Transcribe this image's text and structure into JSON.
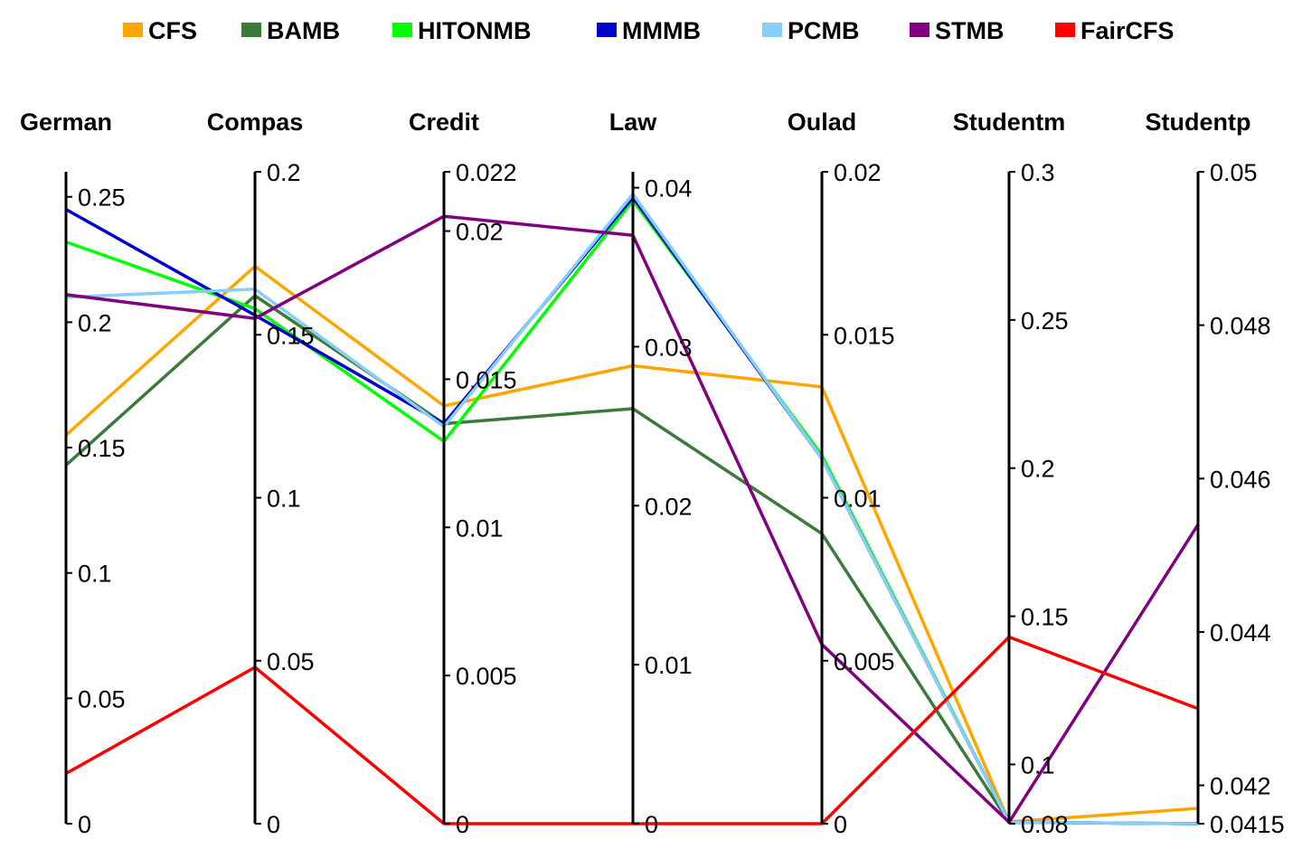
{
  "chart_data": {
    "type": "parallel-coordinates",
    "title": "",
    "legend_position": "top",
    "axes": [
      {
        "name": "German",
        "range": [
          0,
          0.26
        ],
        "ticks": [
          0,
          0.05,
          0.1,
          0.15,
          0.2,
          0.25
        ],
        "tick_labels": [
          "0",
          "0.05",
          "0.1",
          "0.15",
          "0.2",
          "0.25"
        ]
      },
      {
        "name": "Compas",
        "range": [
          0,
          0.2
        ],
        "ticks": [
          0,
          0.05,
          0.1,
          0.15,
          0.2
        ],
        "tick_labels": [
          "0",
          "0.05",
          "0.1",
          "0.15",
          "0.2"
        ]
      },
      {
        "name": "Credit",
        "range": [
          0,
          0.022
        ],
        "ticks": [
          0,
          0.005,
          0.01,
          0.015,
          0.02,
          0.022
        ],
        "tick_labels": [
          "0",
          "0.005",
          "0.01",
          "0.015",
          "0.02",
          "0.022"
        ]
      },
      {
        "name": "Law",
        "range": [
          0,
          0.041
        ],
        "ticks": [
          0,
          0.01,
          0.02,
          0.03,
          0.04
        ],
        "tick_labels": [
          "0",
          "0.01",
          "0.02",
          "0.03",
          "0.04"
        ]
      },
      {
        "name": "Oulad",
        "range": [
          0,
          0.02
        ],
        "ticks": [
          0,
          0.005,
          0.01,
          0.015,
          0.02
        ],
        "tick_labels": [
          "0",
          "0.005",
          "0.01",
          "0.015",
          "0.02"
        ]
      },
      {
        "name": "Studentm",
        "range": [
          0.08,
          0.3
        ],
        "ticks": [
          0.08,
          0.1,
          0.15,
          0.2,
          0.25,
          0.3
        ],
        "tick_labels": [
          "0.08",
          "0.1",
          "0.15",
          "0.2",
          "0.25",
          "0.3"
        ]
      },
      {
        "name": "Studentp",
        "range": [
          0.0415,
          0.05
        ],
        "ticks": [
          0.0415,
          0.042,
          0.044,
          0.046,
          0.048,
          0.05
        ],
        "tick_labels": [
          "0.0415",
          "0.042",
          "0.044",
          "0.046",
          "0.048",
          "0.05"
        ]
      }
    ],
    "series": [
      {
        "name": "CFS",
        "color": "#FFA500",
        "values": [
          0.155,
          0.171,
          0.0141,
          0.0288,
          0.0134,
          0.0806,
          0.0417
        ]
      },
      {
        "name": "BAMB",
        "color": "#3A7A3A",
        "values": [
          0.143,
          0.162,
          0.0135,
          0.0261,
          0.0089,
          0.0805,
          0.0415
        ]
      },
      {
        "name": "HITONMB",
        "color": "#00FF00",
        "values": [
          0.232,
          0.158,
          0.0129,
          0.0392,
          0.0113,
          0.0805,
          0.0415
        ]
      },
      {
        "name": "MMMB",
        "color": "#0000CD",
        "values": [
          0.245,
          0.156,
          0.0135,
          0.0394,
          0.0112,
          0.0805,
          0.0415
        ]
      },
      {
        "name": "PCMB",
        "color": "#87CEFA",
        "values": [
          0.21,
          0.164,
          0.0134,
          0.0396,
          0.0112,
          0.0805,
          0.0415
        ]
      },
      {
        "name": "STMB",
        "color": "#800080",
        "values": [
          0.211,
          0.155,
          0.0205,
          0.037,
          0.0055,
          0.0805,
          0.0454
        ]
      },
      {
        "name": "FairCFS",
        "color": "#FF0000",
        "values": [
          0.02,
          0.048,
          0.0,
          0.0,
          0.0,
          0.143,
          0.043
        ]
      }
    ]
  }
}
